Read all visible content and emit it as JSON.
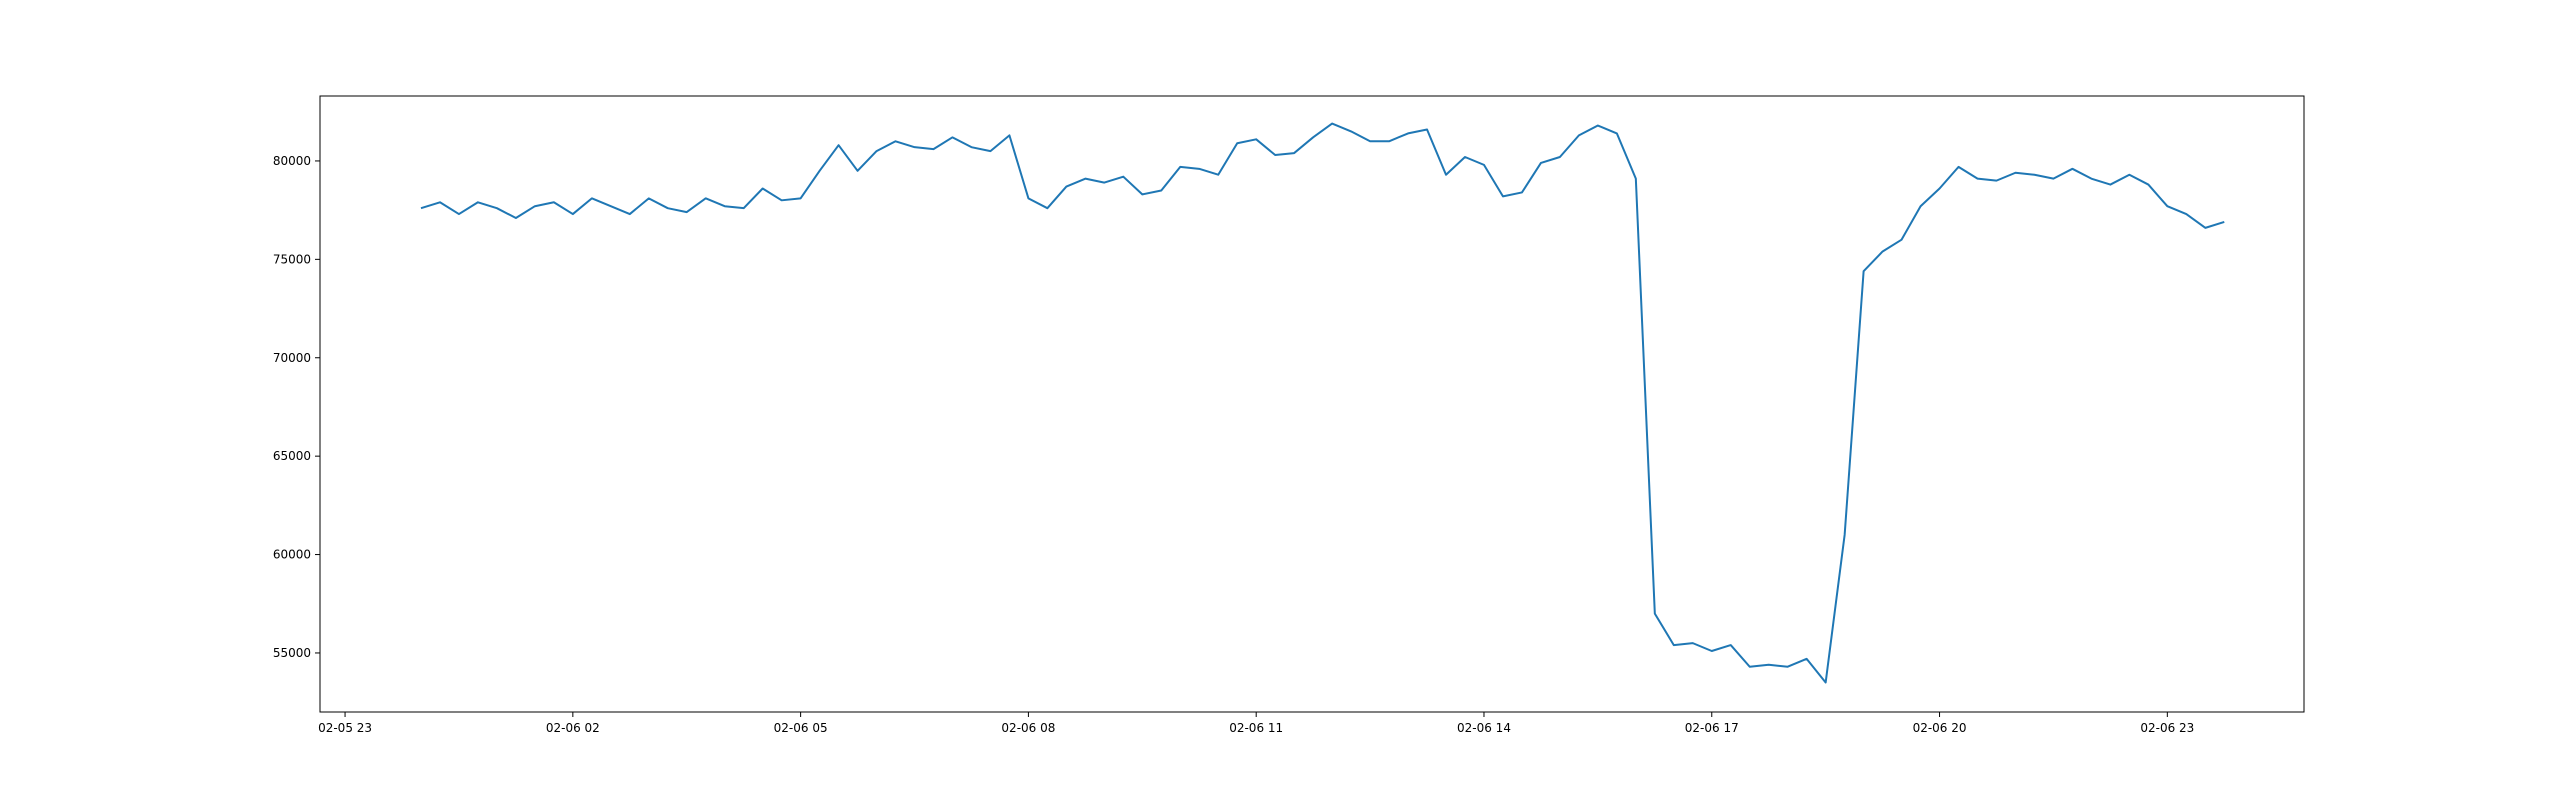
{
  "chart_data": {
    "type": "line",
    "title": "",
    "xlabel": "",
    "ylabel": "",
    "x_axis": {
      "unit": "hours since first tick",
      "range": [
        -0.33,
        25.8
      ],
      "ticks": [
        {
          "value": 0,
          "label": "02-05 23"
        },
        {
          "value": 3,
          "label": "02-06 02"
        },
        {
          "value": 6,
          "label": "02-06 05"
        },
        {
          "value": 9,
          "label": "02-06 08"
        },
        {
          "value": 12,
          "label": "02-06 11"
        },
        {
          "value": 15,
          "label": "02-06 14"
        },
        {
          "value": 18,
          "label": "02-06 17"
        },
        {
          "value": 21,
          "label": "02-06 20"
        },
        {
          "value": 24,
          "label": "02-06 23"
        }
      ]
    },
    "y_axis": {
      "range": [
        52000,
        83300
      ],
      "ticks": [
        {
          "value": 55000,
          "label": "55000"
        },
        {
          "value": 60000,
          "label": "60000"
        },
        {
          "value": 65000,
          "label": "65000"
        },
        {
          "value": 70000,
          "label": "70000"
        },
        {
          "value": 75000,
          "label": "75000"
        },
        {
          "value": 80000,
          "label": "80000"
        }
      ]
    },
    "grid": false,
    "series": [
      {
        "color": "#1f77b4",
        "x_start": 1.0,
        "x_step": 0.25,
        "values": [
          77600,
          77900,
          77300,
          77900,
          77600,
          77100,
          77700,
          77900,
          77300,
          78100,
          77700,
          77300,
          78100,
          77600,
          77400,
          78100,
          77700,
          77600,
          78600,
          78000,
          78100,
          79500,
          80800,
          79500,
          80500,
          81000,
          80700,
          80600,
          81200,
          80700,
          80500,
          81300,
          78100,
          77600,
          78700,
          79100,
          78900,
          79200,
          78300,
          78500,
          79700,
          79600,
          79300,
          80900,
          81100,
          80300,
          80400,
          81200,
          81900,
          81500,
          81000,
          81000,
          81400,
          81600,
          79300,
          80200,
          79800,
          78200,
          78400,
          79900,
          80200,
          81300,
          81800,
          81400,
          79100,
          57000,
          55400,
          55500,
          55100,
          55400,
          54300,
          54400,
          54300,
          54700,
          53500,
          61000,
          74400,
          75400,
          76000,
          77700,
          78600,
          79700,
          79100,
          79000,
          79400,
          79300,
          79100,
          79600,
          79100,
          78800,
          79300,
          78800,
          77700,
          77300,
          76600,
          76900
        ]
      }
    ]
  }
}
